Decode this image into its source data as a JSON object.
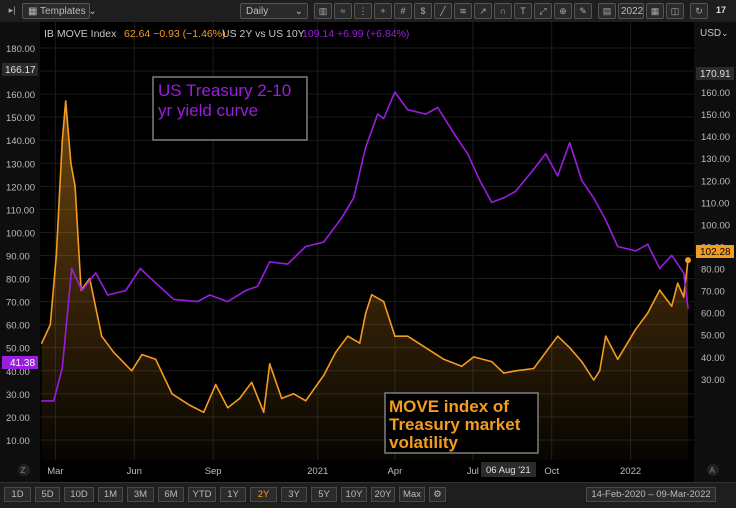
{
  "toolbar": {
    "templates_label": "Templates",
    "interval_label": "Daily",
    "year_label": "2022"
  },
  "legend": {
    "s1_name": "IB MOVE Index",
    "s1_values": "62.64  −0.93 (−1.46%)",
    "s2_name": "US 2Y vs US 10Y",
    "s2_values": "109.14 +6.99 (+6.84%)"
  },
  "currency_label": "USD",
  "left_axis_marker": "166.17",
  "left_axis_current": "41.38",
  "right_axis_marker": "170.91",
  "right_axis_current": "102.28",
  "crosshair_date": "06 Aug '21",
  "annotations": {
    "purple_box": [
      "US Treasury 2-10",
      "yr yield curve"
    ],
    "orange_box": [
      "MOVE index of",
      "Treasury market",
      "volatility"
    ]
  },
  "ranges": [
    "1D",
    "5D",
    "10D",
    "1M",
    "3M",
    "6M",
    "YTD",
    "1Y",
    "2Y",
    "3Y",
    "5Y",
    "10Y",
    "20Y",
    "Max"
  ],
  "active_range": "2Y",
  "date_range": "14-Feb-2020  –  09-Mar-2022",
  "colors": {
    "purple": "#9b1de0",
    "orange": "#f39c1f",
    "background": "#000000",
    "grid": "#1b1b1b"
  },
  "chart_data": {
    "type": "line",
    "x_labels": [
      "Mar",
      "Jun",
      "Sep",
      "2021",
      "Apr",
      "Jul",
      "Oct",
      "2022"
    ],
    "left_axis_ticks": [
      180,
      170,
      160,
      150,
      140,
      130,
      120,
      110,
      100,
      90,
      80,
      70,
      60,
      50,
      40,
      30,
      20,
      10
    ],
    "right_axis_ticks": [
      170,
      160,
      150,
      140,
      130,
      120,
      110,
      100,
      90,
      80,
      70,
      60,
      50,
      40,
      30
    ],
    "series": [
      {
        "name": "IB MOVE Index",
        "axis": "left",
        "color": "#f39c1f",
        "area": true,
        "x": [
          "2020-02-14",
          "2020-02-24",
          "2020-03-02",
          "2020-03-09",
          "2020-03-13",
          "2020-03-19",
          "2020-03-24",
          "2020-03-31",
          "2020-04-10",
          "2020-04-24",
          "2020-05-08",
          "2020-05-29",
          "2020-06-10",
          "2020-06-26",
          "2020-07-15",
          "2020-08-05",
          "2020-08-21",
          "2020-09-04",
          "2020-09-18",
          "2020-10-02",
          "2020-10-16",
          "2020-10-30",
          "2020-11-06",
          "2020-11-20",
          "2020-12-04",
          "2020-12-18",
          "2021-01-08",
          "2021-01-22",
          "2021-02-05",
          "2021-02-19",
          "2021-02-26",
          "2021-03-05",
          "2021-03-19",
          "2021-04-01",
          "2021-04-16",
          "2021-05-07",
          "2021-05-28",
          "2021-06-18",
          "2021-07-02",
          "2021-07-23",
          "2021-08-06",
          "2021-08-20",
          "2021-09-10",
          "2021-09-24",
          "2021-10-08",
          "2021-10-22",
          "2021-11-05",
          "2021-11-19",
          "2021-11-26",
          "2021-12-03",
          "2021-12-17",
          "2022-01-07",
          "2022-01-21",
          "2022-02-04",
          "2022-02-18",
          "2022-02-25",
          "2022-03-04",
          "2022-03-09"
        ],
        "y": [
          52,
          60,
          90,
          140,
          157,
          130,
          120,
          75,
          80,
          55,
          48,
          40,
          47,
          45,
          30,
          25,
          22,
          34,
          24,
          28,
          35,
          22,
          43,
          28,
          30,
          27,
          38,
          48,
          55,
          52,
          65,
          73,
          70,
          55,
          55,
          50,
          45,
          42,
          46,
          44,
          39,
          40,
          41,
          48,
          55,
          50,
          44,
          36,
          40,
          55,
          45,
          58,
          65,
          75,
          68,
          78,
          72,
          88
        ]
      },
      {
        "name": "US 2Y vs US 10Y",
        "axis": "right",
        "color": "#9b1de0",
        "area": false,
        "x": [
          "2020-02-14",
          "2020-02-28",
          "2020-03-09",
          "2020-03-20",
          "2020-04-01",
          "2020-04-17",
          "2020-05-01",
          "2020-05-22",
          "2020-06-08",
          "2020-06-19",
          "2020-07-17",
          "2020-08-14",
          "2020-08-28",
          "2020-09-18",
          "2020-10-09",
          "2020-10-23",
          "2020-11-06",
          "2020-11-27",
          "2020-12-18",
          "2021-01-08",
          "2021-01-29",
          "2021-02-12",
          "2021-02-26",
          "2021-03-12",
          "2021-03-19",
          "2021-04-01",
          "2021-04-16",
          "2021-05-07",
          "2021-05-21",
          "2021-06-11",
          "2021-06-25",
          "2021-07-09",
          "2021-07-23",
          "2021-08-06",
          "2021-08-20",
          "2021-09-10",
          "2021-09-24",
          "2021-10-08",
          "2021-10-22",
          "2021-11-05",
          "2021-11-19",
          "2021-12-03",
          "2021-12-17",
          "2022-01-07",
          "2022-01-21",
          "2022-02-04",
          "2022-02-18",
          "2022-03-04",
          "2022-03-09"
        ],
        "y": [
          20,
          20,
          35,
          80,
          70,
          78,
          68,
          70,
          80,
          76,
          66,
          65,
          68,
          65,
          70,
          72,
          83,
          82,
          90,
          92,
          103,
          112,
          135,
          150,
          148,
          160,
          152,
          150,
          153,
          140,
          132,
          120,
          110,
          112,
          115,
          125,
          132,
          122,
          137,
          120,
          112,
          102,
          90,
          88,
          91,
          80,
          86,
          78,
          62
        ]
      }
    ],
    "left_ylim": [
      0,
      190
    ],
    "right_ylim": [
      20,
      180
    ],
    "grid": true
  }
}
